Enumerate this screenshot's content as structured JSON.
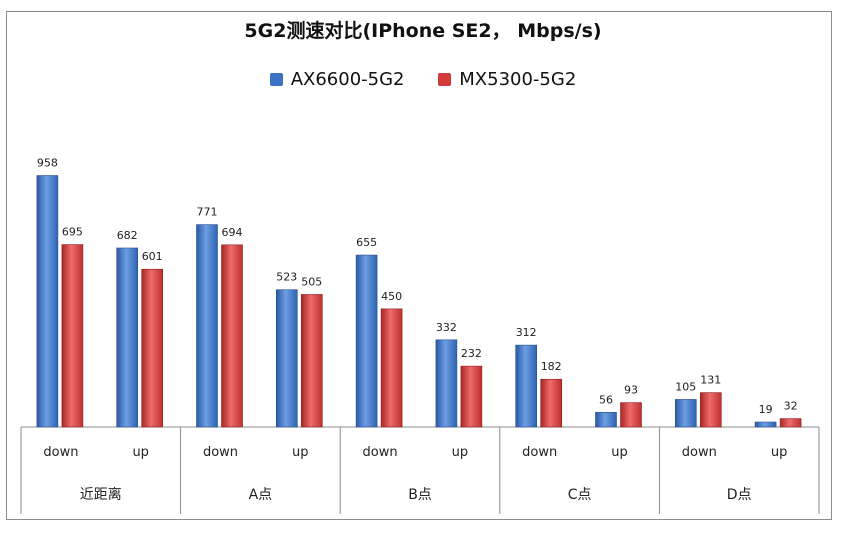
{
  "chart_data": {
    "type": "bar",
    "title": "5G2测速对比(IPhone SE2， Mbps/s)",
    "groups": [
      {
        "label": "近距离",
        "categories": [
          "down",
          "up"
        ]
      },
      {
        "label": "A点",
        "categories": [
          "down",
          "up"
        ]
      },
      {
        "label": "B点",
        "categories": [
          "down",
          "up"
        ]
      },
      {
        "label": "C点",
        "categories": [
          "down",
          "up"
        ]
      },
      {
        "label": "D点",
        "categories": [
          "down",
          "up"
        ]
      }
    ],
    "series": [
      {
        "name": "AX6600-5G2",
        "color": "#3d72c4",
        "values": [
          958,
          682,
          771,
          523,
          655,
          332,
          312,
          56,
          105,
          19
        ]
      },
      {
        "name": "MX5300-5G2",
        "color": "#d33b3b",
        "values": [
          695,
          601,
          694,
          505,
          450,
          232,
          182,
          93,
          131,
          32
        ]
      }
    ],
    "ylim": [
      0,
      1000
    ],
    "grid": false,
    "data_labels": true,
    "legend_position": "top"
  }
}
